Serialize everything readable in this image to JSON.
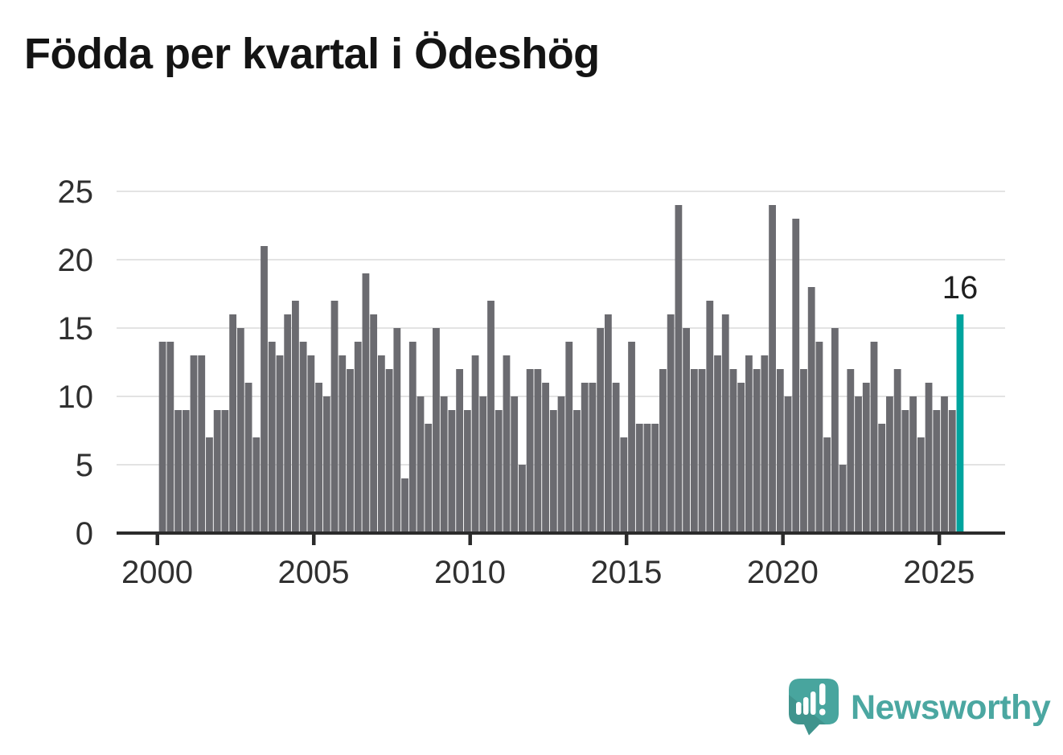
{
  "title": "Födda per kvartal i Ödeshög",
  "annotation": {
    "label": "16"
  },
  "watermark": {
    "brand": "Newsworthy"
  },
  "colors": {
    "bar": "#6B6B70",
    "highlight": "#00A49E",
    "axis": "#2B2B2B",
    "gridline": "#E3E3E3",
    "tick_label": "#303030",
    "logo_teal": "#48A59E",
    "logo_text": "#4BA7A1"
  },
  "chart_data": {
    "type": "bar",
    "title": "Födda per kvartal i Ödeshög",
    "xlabel": "",
    "ylabel": "",
    "x_unit": "quarter",
    "grid": "horizontal",
    "legend": "none",
    "ylim": [
      0,
      25
    ],
    "yticks": [
      0,
      5,
      10,
      15,
      20,
      25
    ],
    "xticks": [
      "2000",
      "2005",
      "2010",
      "2015",
      "2020",
      "2025"
    ],
    "highlight_last": true,
    "highlight_label": "16",
    "categories": [
      "2000Q1",
      "2000Q2",
      "2000Q3",
      "2000Q4",
      "2001Q1",
      "2001Q2",
      "2001Q3",
      "2001Q4",
      "2002Q1",
      "2002Q2",
      "2002Q3",
      "2002Q4",
      "2003Q1",
      "2003Q2",
      "2003Q3",
      "2003Q4",
      "2004Q1",
      "2004Q2",
      "2004Q3",
      "2004Q4",
      "2005Q1",
      "2005Q2",
      "2005Q3",
      "2005Q4",
      "2006Q1",
      "2006Q2",
      "2006Q3",
      "2006Q4",
      "2007Q1",
      "2007Q2",
      "2007Q3",
      "2007Q4",
      "2008Q1",
      "2008Q2",
      "2008Q3",
      "2008Q4",
      "2009Q1",
      "2009Q2",
      "2009Q3",
      "2009Q4",
      "2010Q1",
      "2010Q2",
      "2010Q3",
      "2010Q4",
      "2011Q1",
      "2011Q2",
      "2011Q3",
      "2011Q4",
      "2012Q1",
      "2012Q2",
      "2012Q3",
      "2012Q4",
      "2013Q1",
      "2013Q2",
      "2013Q3",
      "2013Q4",
      "2014Q1",
      "2014Q2",
      "2014Q3",
      "2014Q4",
      "2015Q1",
      "2015Q2",
      "2015Q3",
      "2015Q4",
      "2016Q1",
      "2016Q2",
      "2016Q3",
      "2016Q4",
      "2017Q1",
      "2017Q2",
      "2017Q3",
      "2017Q4",
      "2018Q1",
      "2018Q2",
      "2018Q3",
      "2018Q4",
      "2019Q1",
      "2019Q2",
      "2019Q3",
      "2019Q4",
      "2020Q1",
      "2020Q2",
      "2020Q3",
      "2020Q4",
      "2021Q1",
      "2021Q2",
      "2021Q3",
      "2021Q4",
      "2022Q1",
      "2022Q2",
      "2022Q3",
      "2022Q4",
      "2023Q1",
      "2023Q2",
      "2023Q3",
      "2023Q4",
      "2024Q1",
      "2024Q2",
      "2024Q3",
      "2024Q4",
      "2025Q1",
      "2025Q2",
      "2025Q3"
    ],
    "values": [
      14,
      14,
      9,
      9,
      13,
      13,
      7,
      9,
      9,
      16,
      15,
      11,
      7,
      21,
      14,
      13,
      16,
      17,
      14,
      13,
      11,
      10,
      17,
      13,
      12,
      14,
      19,
      16,
      13,
      12,
      15,
      4,
      14,
      10,
      8,
      15,
      10,
      9,
      12,
      9,
      13,
      10,
      17,
      9,
      13,
      10,
      5,
      12,
      12,
      11,
      9,
      10,
      14,
      9,
      11,
      11,
      15,
      16,
      11,
      7,
      14,
      8,
      8,
      8,
      12,
      16,
      24,
      15,
      12,
      12,
      17,
      13,
      16,
      12,
      11,
      13,
      12,
      13,
      24,
      12,
      10,
      23,
      12,
      18,
      14,
      7,
      15,
      5,
      12,
      10,
      11,
      14,
      8,
      10,
      12,
      9,
      10,
      7,
      11,
      9,
      10,
      9,
      16
    ]
  }
}
